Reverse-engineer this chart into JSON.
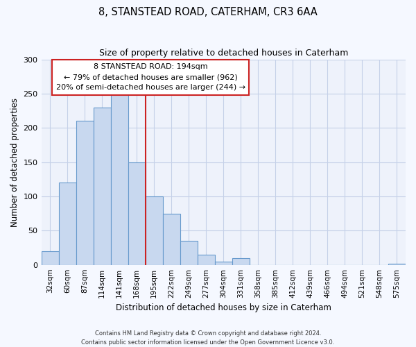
{
  "title": "8, STANSTEAD ROAD, CATERHAM, CR3 6AA",
  "subtitle": "Size of property relative to detached houses in Caterham",
  "xlabel": "Distribution of detached houses by size in Caterham",
  "ylabel": "Number of detached properties",
  "bar_labels": [
    "32sqm",
    "60sqm",
    "87sqm",
    "114sqm",
    "141sqm",
    "168sqm",
    "195sqm",
    "222sqm",
    "249sqm",
    "277sqm",
    "304sqm",
    "331sqm",
    "358sqm",
    "385sqm",
    "412sqm",
    "439sqm",
    "466sqm",
    "494sqm",
    "521sqm",
    "548sqm",
    "575sqm"
  ],
  "bar_values": [
    20,
    120,
    210,
    230,
    250,
    150,
    100,
    75,
    35,
    15,
    5,
    10,
    0,
    0,
    0,
    0,
    0,
    0,
    0,
    0,
    2
  ],
  "bar_color": "#c8d8ef",
  "bar_edge_color": "#6699cc",
  "ylim": [
    0,
    300
  ],
  "yticks": [
    0,
    50,
    100,
    150,
    200,
    250,
    300
  ],
  "property_label": "8 STANSTEAD ROAD: 194sqm",
  "annotation_line1": "← 79% of detached houses are smaller (962)",
  "annotation_line2": "20% of semi-detached houses are larger (244) →",
  "footer1": "Contains HM Land Registry data © Crown copyright and database right 2024.",
  "footer2": "Contains public sector information licensed under the Open Government Licence v3.0.",
  "bg_color": "#f5f8ff",
  "plot_bg_color": "#eef2fb",
  "grid_color": "#c5d0e8"
}
